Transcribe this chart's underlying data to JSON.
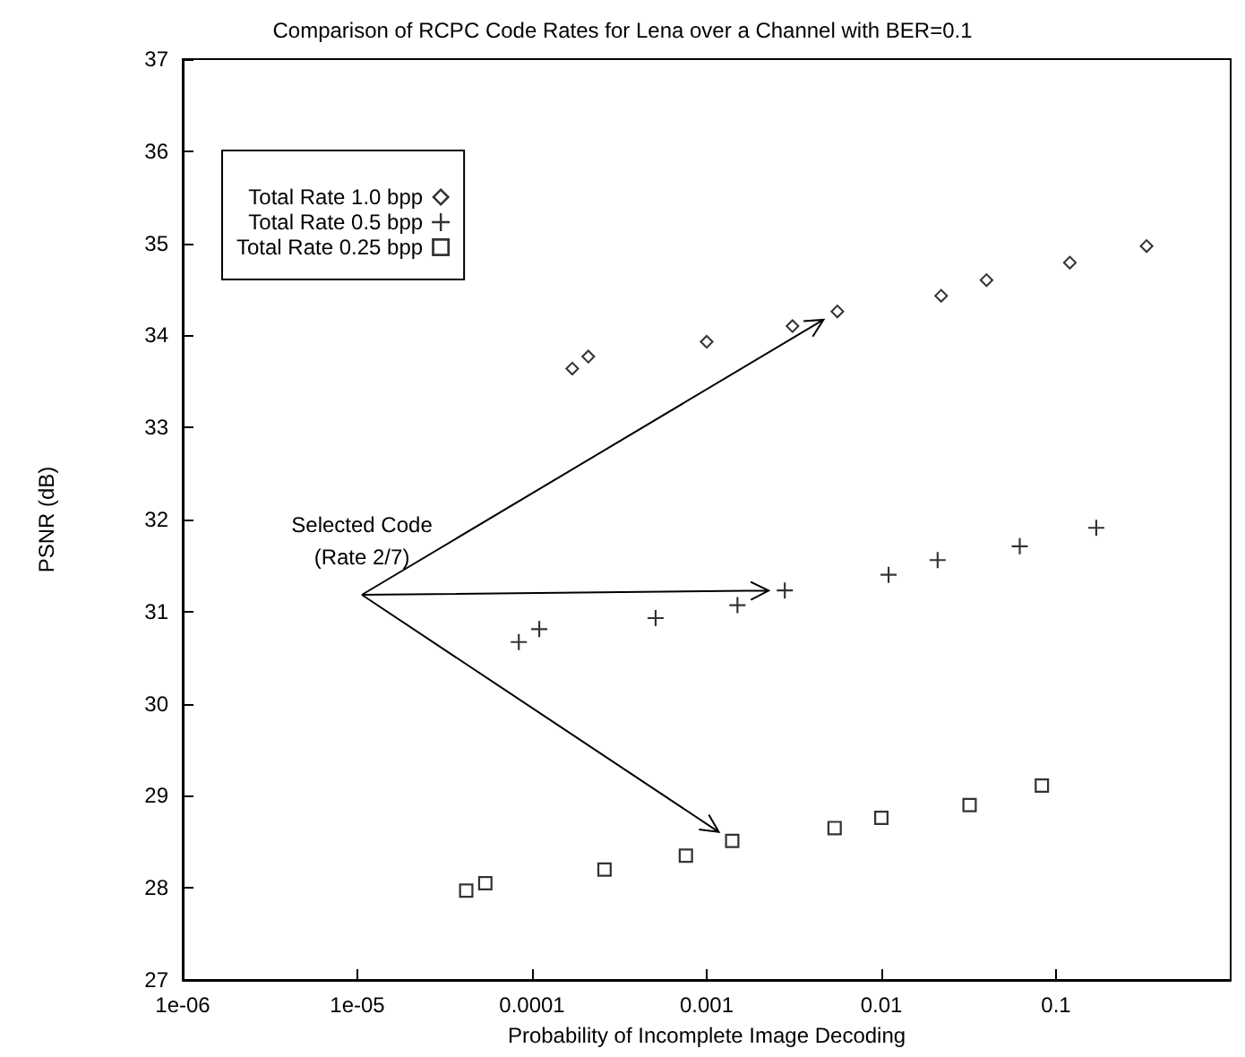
{
  "chart_data": {
    "type": "scatter",
    "title": "Comparison of RCPC Code Rates for Lena over a Channel with BER=0.1",
    "xlabel": "Probability of Incomplete Image Decoding",
    "ylabel": "PSNR (dB)",
    "log": "x",
    "xlim": [
      1e-06,
      1
    ],
    "ylim": [
      27,
      37
    ],
    "xticks": [
      {
        "value": 1e-06,
        "label": "1e-06"
      },
      {
        "value": 1e-05,
        "label": "1e-05"
      },
      {
        "value": 0.0001,
        "label": "0.0001"
      },
      {
        "value": 0.001,
        "label": "0.001"
      },
      {
        "value": 0.01,
        "label": "0.01"
      },
      {
        "value": 0.1,
        "label": "0.1"
      }
    ],
    "yticks": [
      27,
      28,
      29,
      30,
      31,
      32,
      33,
      34,
      35,
      36,
      37
    ],
    "grid": false,
    "legend": "top left",
    "annotations": [
      "Selected Code\n(Rate 2/7)"
    ],
    "series": [
      {
        "name": "Total Rate 1.0 bpp",
        "color": "#000000",
        "marker": "diamond",
        "x": [
          0.00017,
          0.00021,
          0.001,
          0.0031,
          0.0056,
          0.022,
          0.04,
          0.12,
          0.33
        ],
        "values": [
          33.64,
          33.77,
          33.93,
          34.1,
          34.26,
          34.43,
          34.6,
          34.79,
          34.97
        ]
      },
      {
        "name": "Total Rate 0.5 bpp",
        "color": "#000000",
        "marker": "cross",
        "x": [
          8.4e-05,
          0.00011,
          0.00051,
          0.0015,
          0.0028,
          0.011,
          0.021,
          0.062,
          0.17
        ],
        "values": [
          30.67,
          30.81,
          30.93,
          31.07,
          31.23,
          31.4,
          31.56,
          31.71,
          31.91
        ]
      },
      {
        "name": "Total Rate 0.25 bpp",
        "color": "#000000",
        "marker": "square",
        "x": [
          4.2e-05,
          5.4e-05,
          0.00026,
          0.00076,
          0.0014,
          0.0054,
          0.01,
          0.032,
          0.083
        ],
        "values": [
          27.97,
          28.05,
          28.2,
          28.35,
          28.51,
          28.65,
          28.76,
          28.9,
          29.11
        ]
      }
    ]
  }
}
